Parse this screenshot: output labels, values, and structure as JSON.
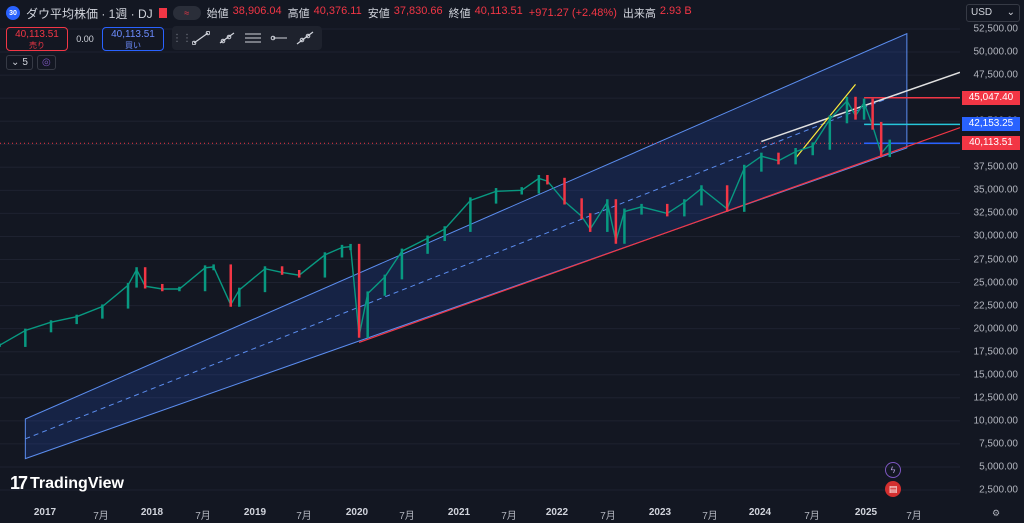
{
  "header": {
    "symbol_badge": "30",
    "title": "ダウ平均株価 · 1週 · DJ",
    "pill_icon": "approx-icon",
    "ohlc": [
      {
        "label": "始値",
        "value": "38,906.04"
      },
      {
        "label": "高値",
        "value": "40,376.11"
      },
      {
        "label": "安値",
        "value": "37,830.66"
      },
      {
        "label": "終値",
        "value": "40,113.51"
      }
    ],
    "change": "+971.27 (+2.48%)",
    "volume_label": "出来高",
    "volume_value": "2.93 B"
  },
  "trade": {
    "sell_price": "40,113.51",
    "sell_label": "売り",
    "spread": "0.00",
    "buy_price": "40,113.51",
    "buy_label": "買い"
  },
  "indicators": {
    "count": "5"
  },
  "currency": "USD",
  "colors": {
    "background": "#131722",
    "up": "#089981",
    "down": "#f23645",
    "channel": "#2962ff",
    "accent_red": "#f23645",
    "accent_blue": "#2962ff"
  },
  "price_axis": {
    "ticks": [
      "52,500.00",
      "50,000.00",
      "47,500.00",
      "45,000.00",
      "42,500.00",
      "40,000.00",
      "37,500.00",
      "35,000.00",
      "32,500.00",
      "30,000.00",
      "27,500.00",
      "25,000.00",
      "22,500.00",
      "20,000.00",
      "17,500.00",
      "15,000.00",
      "12,500.00",
      "10,000.00",
      "7,500.00",
      "5,000.00",
      "2,500.00"
    ],
    "labels": [
      {
        "text": "45,047.40",
        "color": "#f23645"
      },
      {
        "text": "42,153.25",
        "color": "#2962ff"
      },
      {
        "text": "40,113.51",
        "color": "#f23645"
      }
    ]
  },
  "time_axis": {
    "ticks": [
      {
        "text": "2017",
        "year": true
      },
      {
        "text": "7月",
        "year": false
      },
      {
        "text": "2018",
        "year": true
      },
      {
        "text": "7月",
        "year": false
      },
      {
        "text": "2019",
        "year": true
      },
      {
        "text": "7月",
        "year": false
      },
      {
        "text": "2020",
        "year": true
      },
      {
        "text": "7月",
        "year": false
      },
      {
        "text": "2021",
        "year": true
      },
      {
        "text": "7月",
        "year": false
      },
      {
        "text": "2022",
        "year": true
      },
      {
        "text": "7月",
        "year": false
      },
      {
        "text": "2023",
        "year": true
      },
      {
        "text": "7月",
        "year": false
      },
      {
        "text": "2024",
        "year": true
      },
      {
        "text": "7月",
        "year": false
      },
      {
        "text": "2025",
        "year": true
      },
      {
        "text": "7月",
        "year": false
      }
    ]
  },
  "logo": {
    "mark": "17",
    "text": "TradingView"
  },
  "toolbar_icons": [
    "trend-line-icon",
    "ray-icon",
    "horizontal-lines-icon",
    "horizontal-ray-icon",
    "extended-line-icon"
  ],
  "chart_data": {
    "type": "line",
    "title": "",
    "xlabel": "",
    "ylabel": "",
    "ylim": [
      2500,
      52500
    ],
    "x_range": [
      "2016-09",
      "2025-12"
    ],
    "series": [
      {
        "name": "",
        "color": "#089981",
        "x": [
          "2016-09",
          "2016-12",
          "2017-03",
          "2017-06",
          "2017-09",
          "2017-12",
          "2018-01",
          "2018-02",
          "2018-04",
          "2018-06",
          "2018-09",
          "2018-10",
          "2018-12",
          "2019-01",
          "2019-04",
          "2019-06",
          "2019-08",
          "2019-11",
          "2020-01",
          "2020-02",
          "2020-03",
          "2020-04",
          "2020-06",
          "2020-08",
          "2020-11",
          "2021-01",
          "2021-04",
          "2021-07",
          "2021-10",
          "2021-12",
          "2022-01",
          "2022-03",
          "2022-05",
          "2022-06",
          "2022-08",
          "2022-09",
          "2022-10",
          "2022-12",
          "2023-03",
          "2023-05",
          "2023-07",
          "2023-10",
          "2023-12",
          "2024-02",
          "2024-04",
          "2024-06",
          "2024-08",
          "2024-10",
          "2024-12",
          "2025-01",
          "2025-02",
          "2025-03",
          "2025-04",
          "2025-05"
        ],
        "values": [
          18200,
          19800,
          20700,
          21300,
          22400,
          24700,
          26400,
          24600,
          24300,
          24300,
          26600,
          26700,
          22600,
          24200,
          26500,
          26100,
          25800,
          28000,
          28800,
          28900,
          19200,
          23800,
          25600,
          28400,
          29800,
          30800,
          33900,
          34900,
          35000,
          36300,
          36000,
          33800,
          32200,
          30800,
          33700,
          29500,
          32700,
          33200,
          32500,
          33700,
          35200,
          33000,
          37400,
          38700,
          38200,
          39200,
          39800,
          42700,
          44700,
          43100,
          44500,
          42000,
          39000,
          40100
        ]
      }
    ],
    "drawings": {
      "channel": {
        "top_line": [
          [
            "2016-12",
            10200
          ],
          [
            "2025-07",
            52000
          ]
        ],
        "bottom_line": [
          [
            "2016-12",
            5900
          ],
          [
            "2025-07",
            39600
          ]
        ]
      },
      "horizontal_levels": [
        45047.4,
        42153.25,
        40113.51
      ],
      "current_price_line": 40113.51
    }
  }
}
